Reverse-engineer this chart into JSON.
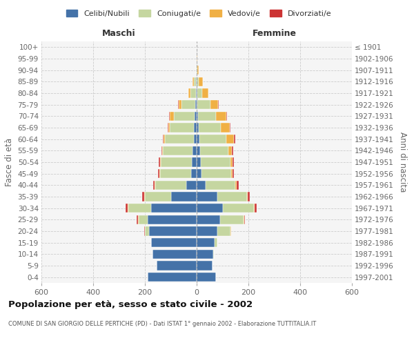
{
  "age_groups": [
    "0-4",
    "5-9",
    "10-14",
    "15-19",
    "20-24",
    "25-29",
    "30-34",
    "35-39",
    "40-44",
    "45-49",
    "50-54",
    "55-59",
    "60-64",
    "65-69",
    "70-74",
    "75-79",
    "80-84",
    "85-89",
    "90-94",
    "95-99",
    "100+"
  ],
  "birth_years": [
    "1997-2001",
    "1992-1996",
    "1987-1991",
    "1982-1986",
    "1977-1981",
    "1972-1976",
    "1967-1971",
    "1962-1966",
    "1957-1961",
    "1952-1956",
    "1947-1951",
    "1942-1946",
    "1937-1941",
    "1932-1936",
    "1927-1931",
    "1922-1926",
    "1917-1921",
    "1912-1916",
    "1907-1911",
    "1902-1906",
    "≤ 1901"
  ],
  "males": {
    "celibi": [
      190,
      155,
      170,
      175,
      185,
      190,
      175,
      100,
      40,
      22,
      18,
      15,
      12,
      10,
      8,
      5,
      3,
      2,
      0,
      0,
      0
    ],
    "coniugati": [
      0,
      0,
      1,
      2,
      15,
      35,
      90,
      100,
      120,
      120,
      120,
      115,
      110,
      95,
      80,
      55,
      20,
      10,
      3,
      1,
      0
    ],
    "vedovi": [
      0,
      0,
      0,
      0,
      1,
      3,
      3,
      3,
      3,
      3,
      3,
      3,
      5,
      5,
      15,
      10,
      8,
      3,
      0,
      0,
      0
    ],
    "divorziati": [
      0,
      0,
      0,
      0,
      2,
      3,
      8,
      8,
      5,
      5,
      5,
      3,
      3,
      2,
      3,
      2,
      0,
      0,
      0,
      0,
      0
    ]
  },
  "females": {
    "nubili": [
      75,
      60,
      65,
      70,
      80,
      90,
      100,
      80,
      35,
      18,
      15,
      12,
      10,
      8,
      5,
      3,
      2,
      1,
      0,
      0,
      0
    ],
    "coniugate": [
      0,
      0,
      2,
      10,
      50,
      90,
      120,
      115,
      115,
      115,
      115,
      110,
      105,
      85,
      70,
      50,
      18,
      8,
      2,
      0,
      0
    ],
    "vedove": [
      0,
      0,
      0,
      0,
      2,
      3,
      3,
      3,
      5,
      5,
      8,
      15,
      30,
      35,
      40,
      30,
      25,
      15,
      5,
      2,
      0
    ],
    "divorziate": [
      0,
      0,
      0,
      0,
      2,
      3,
      10,
      8,
      8,
      5,
      5,
      3,
      3,
      2,
      2,
      2,
      0,
      0,
      0,
      0,
      0
    ]
  },
  "colors": {
    "celibi": "#4472a8",
    "coniugati": "#c5d6a0",
    "vedovi": "#f0b045",
    "divorziati": "#cc3333"
  },
  "xlim": 600,
  "title": "Popolazione per età, sesso e stato civile - 2002",
  "subtitle": "COMUNE DI SAN GIORGIO DELLE PERTICHE (PD) - Dati ISTAT 1° gennaio 2002 - Elaborazione TUTTITALIA.IT",
  "ylabel_left": "Fasce di età",
  "ylabel_right": "Anni di nascita",
  "xlabel_maschi": "Maschi",
  "xlabel_femmine": "Femmine",
  "legend_labels": [
    "Celibi/Nubili",
    "Coniugati/e",
    "Vedovi/e",
    "Divorziati/e"
  ],
  "bg_color": "#f5f5f5"
}
